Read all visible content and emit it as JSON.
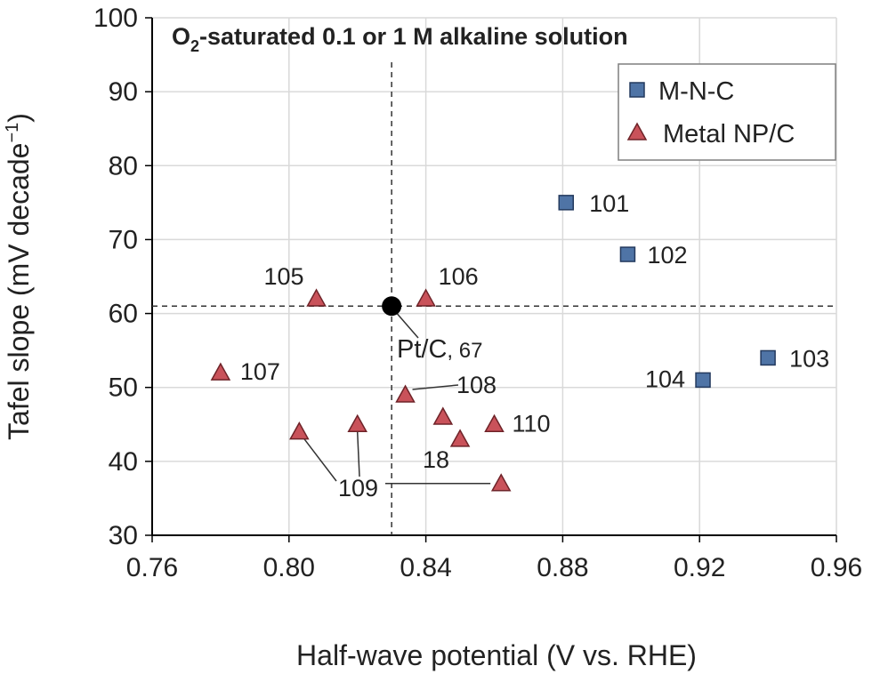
{
  "chart_data": {
    "type": "scatter",
    "title_main": "O",
    "title_sub": "2",
    "title_rest": "-saturated 0.1 or 1 M alkaline solution",
    "xlabel": "Half-wave potential (V vs. RHE)",
    "ylabel_main": "Tafel slope (mV decade",
    "ylabel_sup": "−1",
    "ylabel_close": ")",
    "xlim": [
      0.76,
      0.96
    ],
    "ylim": [
      30,
      100
    ],
    "x_ticks": [
      "0.76",
      "0.80",
      "0.84",
      "0.88",
      "0.92",
      "0.96"
    ],
    "y_ticks": [
      "30",
      "40",
      "50",
      "60",
      "70",
      "80",
      "90",
      "100"
    ],
    "grid": true,
    "legend_position": "top-right",
    "series": [
      {
        "name": "M-N-C",
        "marker": "square",
        "color": "#4f74a6",
        "points": [
          {
            "x": 0.881,
            "y": 75,
            "label": "101"
          },
          {
            "x": 0.899,
            "y": 68,
            "label": "102"
          },
          {
            "x": 0.94,
            "y": 54,
            "label": "103"
          },
          {
            "x": 0.921,
            "y": 51,
            "label": "104"
          }
        ]
      },
      {
        "name": "Metal NP/C",
        "marker": "triangle",
        "color": "#c9525a",
        "points": [
          {
            "x": 0.808,
            "y": 62,
            "label": "105"
          },
          {
            "x": 0.84,
            "y": 62,
            "label": "106"
          },
          {
            "x": 0.78,
            "y": 52,
            "label": "107"
          },
          {
            "x": 0.834,
            "y": 49,
            "label": "108"
          },
          {
            "x": 0.845,
            "y": 46,
            "label": ""
          },
          {
            "x": 0.85,
            "y": 43,
            "label": "18"
          },
          {
            "x": 0.86,
            "y": 45,
            "label": "110"
          },
          {
            "x": 0.803,
            "y": 44,
            "label": ""
          },
          {
            "x": 0.82,
            "y": 45,
            "label": ""
          },
          {
            "x": 0.862,
            "y": 37,
            "label": ""
          }
        ]
      }
    ],
    "reference": {
      "x": 0.83,
      "y": 61,
      "label": "Pt/C",
      "label_ref": ", 67",
      "color": "#000000"
    },
    "shared_label": "109"
  }
}
